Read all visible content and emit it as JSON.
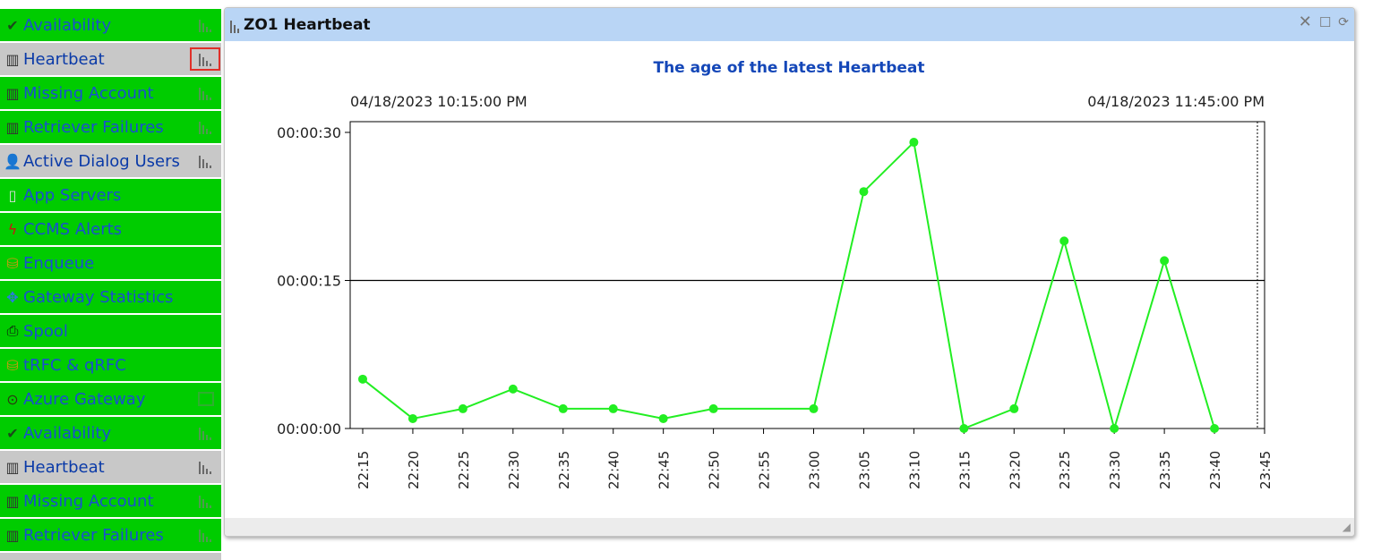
{
  "sidebar": {
    "items": [
      {
        "label": "Availability",
        "icon": "check-icon",
        "glyph": "✔",
        "state": "green",
        "action": "chart"
      },
      {
        "label": "Heartbeat",
        "icon": "bar-chart-icon",
        "glyph": "▥",
        "state": "gray",
        "action": "chart-selected"
      },
      {
        "label": "Missing Account",
        "icon": "bar-chart-icon",
        "glyph": "▥",
        "state": "green",
        "action": "chart"
      },
      {
        "label": "Retriever Failures",
        "icon": "bar-chart-icon",
        "glyph": "▥",
        "state": "green",
        "action": "chart"
      },
      {
        "label": "Active Dialog Users",
        "icon": "user-icon",
        "glyph": "👤",
        "state": "gray",
        "action": "chart"
      },
      {
        "label": "App Servers",
        "icon": "server-icon",
        "glyph": "▯",
        "state": "green",
        "action": "none"
      },
      {
        "label": "CCMS Alerts",
        "icon": "alert-icon",
        "glyph": "ϟ",
        "state": "green",
        "action": "none"
      },
      {
        "label": "Enqueue",
        "icon": "database-icon",
        "glyph": "⛁",
        "state": "green",
        "action": "none"
      },
      {
        "label": "Gateway Statistics",
        "icon": "gateway-icon",
        "glyph": "✥",
        "state": "green",
        "action": "none"
      },
      {
        "label": "Spool",
        "icon": "printer-icon",
        "glyph": "⎙",
        "state": "green",
        "action": "none"
      },
      {
        "label": "tRFC & qRFC",
        "icon": "database-icon",
        "glyph": "⛁",
        "state": "green",
        "action": "none"
      },
      {
        "label": "Azure Gateway",
        "icon": "gauge-icon",
        "glyph": "⊙",
        "state": "green",
        "action": "list"
      },
      {
        "label": "Availability",
        "icon": "check-icon",
        "glyph": "✔",
        "state": "green",
        "action": "chart"
      },
      {
        "label": "Heartbeat",
        "icon": "bar-chart-icon",
        "glyph": "▥",
        "state": "gray",
        "action": "chart"
      },
      {
        "label": "Missing Account",
        "icon": "bar-chart-icon",
        "glyph": "▥",
        "state": "green",
        "action": "chart"
      },
      {
        "label": "Retriever Failures",
        "icon": "bar-chart-icon",
        "glyph": "▥",
        "state": "green",
        "action": "chart"
      }
    ]
  },
  "panel": {
    "title": "ZO1 Heartbeat"
  },
  "chart_data": {
    "type": "line",
    "title": "The age of the latest Heartbeat",
    "range_start_label": "04/18/2023 10:15:00 PM",
    "range_end_label": "04/18/2023 11:45:00 PM",
    "xlabel": "",
    "ylabel": "",
    "y_ticks": [
      "00:00:00",
      "00:00:15",
      "00:00:30"
    ],
    "ylim_seconds": [
      0,
      30
    ],
    "categories": [
      "22:15",
      "22:20",
      "22:25",
      "22:30",
      "22:35",
      "22:40",
      "22:45",
      "22:50",
      "22:55",
      "23:00",
      "23:05",
      "23:10",
      "23:15",
      "23:20",
      "23:25",
      "23:30",
      "23:35",
      "23:40",
      "23:45"
    ],
    "series": [
      {
        "points": [
          {
            "x": "22:15",
            "y": 5
          },
          {
            "x": "22:20",
            "y": 1
          },
          {
            "x": "22:25",
            "y": 2
          },
          {
            "x": "22:30",
            "y": 4
          },
          {
            "x": "22:35",
            "y": 2
          },
          {
            "x": "22:40",
            "y": 2
          },
          {
            "x": "22:45",
            "y": 1
          },
          {
            "x": "22:50",
            "y": 2
          },
          {
            "x": "23:00",
            "y": 2
          },
          {
            "x": "23:05",
            "y": 24
          },
          {
            "x": "23:10",
            "y": 29
          },
          {
            "x": "23:15",
            "y": 0
          },
          {
            "x": "23:20",
            "y": 2
          },
          {
            "x": "23:25",
            "y": 19
          },
          {
            "x": "23:30",
            "y": 0
          },
          {
            "x": "23:35",
            "y": 17
          },
          {
            "x": "23:40",
            "y": 0
          }
        ],
        "color": "#22ee22"
      }
    ],
    "threshold_seconds": 15,
    "grid": false
  }
}
